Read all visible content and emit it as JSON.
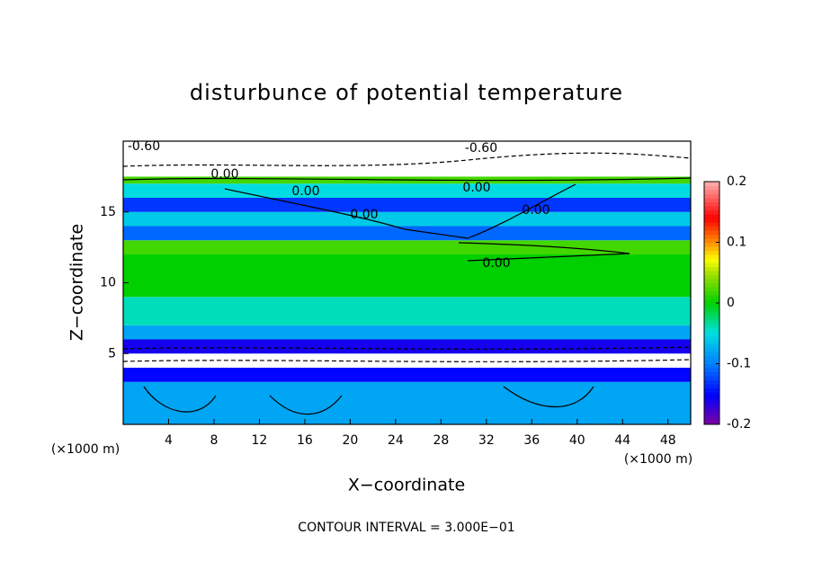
{
  "chart_data": {
    "type": "contour-fill",
    "title": "disturbunce of potential temperature",
    "x_label": "X−coordinate",
    "y_label": "Z−coordinate",
    "x_unit": "(×1000 m)",
    "y_unit": "(×1000 m)",
    "footer": "CONTOUR INTERVAL = 3.000E−01",
    "xlim": [
      0,
      50
    ],
    "ylim": [
      0,
      20
    ],
    "xticks": [
      4,
      8,
      12,
      16,
      20,
      24,
      28,
      32,
      36,
      40,
      44,
      48
    ],
    "yticks": [
      5,
      10,
      15
    ],
    "colorbar_lim": [
      -0.2,
      0.2
    ],
    "colorbar_ticks": [
      -0.2,
      -0.1,
      0,
      0.1,
      0.2
    ],
    "bands": [
      {
        "z": [
          0,
          3
        ],
        "value": -0.08
      },
      {
        "z": [
          3,
          4
        ],
        "value": -0.15
      },
      {
        "z": [
          4,
          5
        ],
        "value": 0.3
      },
      {
        "z": [
          5,
          6
        ],
        "value": -0.16
      },
      {
        "z": [
          6,
          7
        ],
        "value": -0.08
      },
      {
        "z": [
          7,
          9
        ],
        "value": -0.04
      },
      {
        "z": [
          9,
          12
        ],
        "value": 0.0
      },
      {
        "z": [
          12,
          13
        ],
        "value": 0.02
      },
      {
        "z": [
          13,
          14
        ],
        "value": -0.11
      },
      {
        "z": [
          14,
          15
        ],
        "value": -0.06
      },
      {
        "z": [
          15,
          16
        ],
        "value": -0.13
      },
      {
        "z": [
          16,
          17
        ],
        "value": -0.05
      },
      {
        "z": [
          17,
          17.5
        ],
        "value": 0.02
      },
      {
        "z": [
          17.5,
          20
        ],
        "value": 0.3
      }
    ],
    "annotations": [
      "-0.60",
      "-0.60",
      "0.00",
      "0.00",
      "0.00",
      "0.00",
      "0.00",
      "0.00"
    ]
  }
}
